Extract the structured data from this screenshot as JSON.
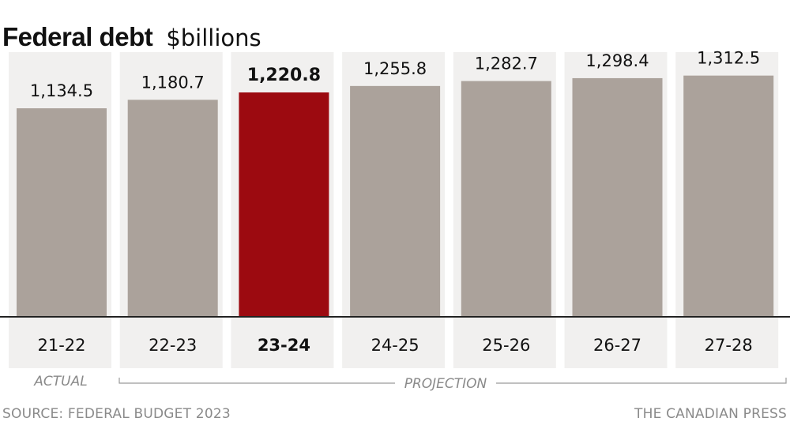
{
  "chart_data": {
    "type": "bar",
    "title": "Federal debt",
    "subtitle": "$billions",
    "categories": [
      "21-22",
      "22-23",
      "23-24",
      "24-25",
      "25-26",
      "26-27",
      "27-28"
    ],
    "value_labels": [
      "1,134.5",
      "1,180.7",
      "1,220.8",
      "1,255.8",
      "1,282.7",
      "1,298.4",
      "1,312.5"
    ],
    "values": [
      1134.5,
      1180.7,
      1220.8,
      1255.8,
      1282.7,
      1298.4,
      1312.5
    ],
    "highlight_index": 2,
    "ylim": [
      0,
      1440
    ],
    "colors": {
      "bar": "#aba29b",
      "highlight": "#9c0a10",
      "column_bg": "#f1f0ef",
      "axis": "#222222"
    },
    "period_labels": {
      "actual": "ACTUAL",
      "projection": "PROJECTION"
    }
  },
  "footer": {
    "source": "SOURCE: FEDERAL BUDGET 2023",
    "credit": "THE CANADIAN PRESS"
  }
}
